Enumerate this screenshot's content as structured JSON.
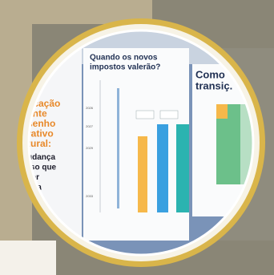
{
  "left_slide": {
    "lines": [
      {
        "text": "ficação",
        "tone": "accent"
      },
      {
        "text": "ante",
        "tone": "accent"
      },
      {
        "text": "senho",
        "tone": "accent"
      },
      {
        "text": "rativo",
        "tone": "accent"
      },
      {
        "text": "tural:",
        "tone": "accent"
      },
      {
        "text": "udança",
        "tone": "dark"
      },
      {
        "text": "rso que",
        "tone": "dark"
      },
      {
        "text": "ser",
        "tone": "dark"
      },
      {
        "text": "nda",
        "tone": "dark"
      },
      {
        "text": "va",
        "tone": "dark"
      },
      {
        "text": "ação",
        "tone": "dark"
      }
    ]
  },
  "center_slide": {
    "title_lines": [
      "Quando os novos",
      "impostos valerão?"
    ],
    "years": [
      "2026",
      "2027",
      "2029",
      "2033"
    ]
  },
  "right_slide": {
    "title_lines": [
      "Como",
      "transiç."
    ]
  }
}
